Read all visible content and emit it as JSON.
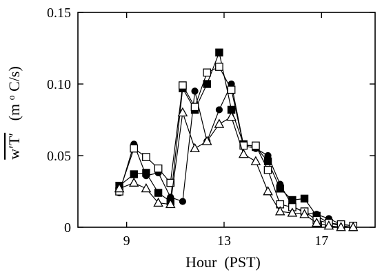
{
  "chart_data": {
    "type": "line",
    "xlabel": "Hour  (PST)",
    "ylabel": "w'T'  (m °C/s)",
    "ylabel_parts": {
      "main": "w′T′",
      "unit_pre": "(m ",
      "unit_sup": "o",
      "unit_post": "C/s)"
    },
    "xlim": [
      7,
      19.2
    ],
    "ylim": [
      0,
      0.15
    ],
    "xticks": [
      9,
      13,
      17
    ],
    "xtick_labels": [
      "9",
      "13",
      "17"
    ],
    "yticks": [
      0,
      0.05,
      0.1,
      0.15
    ],
    "ytick_labels": [
      "0",
      "0.05",
      "0.10",
      "0.15"
    ],
    "grid": false,
    "legend": "none",
    "series": [
      {
        "marker": "filled-circle",
        "x": [
          8.7,
          9.3,
          9.8,
          10.3,
          10.8,
          11.3,
          11.8,
          12.3,
          12.8,
          13.3,
          13.8,
          14.3,
          14.8,
          15.3,
          15.8,
          16.3,
          16.8,
          17.3,
          17.8,
          18.3
        ],
        "y": [
          0.024,
          0.058,
          0.036,
          0.038,
          0.021,
          0.018,
          0.095,
          0.06,
          0.082,
          0.1,
          0.057,
          0.055,
          0.05,
          0.03,
          0.015,
          0.01,
          0.009,
          0.006,
          0.002,
          0.001
        ]
      },
      {
        "marker": "filled-square",
        "x": [
          8.7,
          9.3,
          9.8,
          10.3,
          10.8,
          11.3,
          11.8,
          12.3,
          12.8,
          13.3,
          13.8,
          14.3,
          14.8,
          15.3,
          15.8,
          16.3,
          16.8,
          17.3,
          17.8,
          18.3
        ],
        "y": [
          0.029,
          0.037,
          0.038,
          0.024,
          0.018,
          0.097,
          0.082,
          0.1,
          0.122,
          0.082,
          0.058,
          0.056,
          0.046,
          0.027,
          0.019,
          0.02,
          0.008,
          0.003,
          0.001,
          0.0
        ]
      },
      {
        "marker": "open-square",
        "x": [
          8.7,
          9.3,
          9.8,
          10.3,
          10.8,
          11.3,
          11.8,
          12.3,
          12.8,
          13.3,
          13.8,
          14.3,
          14.8,
          15.3,
          15.8,
          16.3,
          16.8,
          17.3,
          17.8,
          18.3
        ],
        "y": [
          0.025,
          0.055,
          0.049,
          0.041,
          0.031,
          0.099,
          0.084,
          0.108,
          0.112,
          0.096,
          0.057,
          0.057,
          0.04,
          0.016,
          0.014,
          0.011,
          0.005,
          0.003,
          0.002,
          0.001
        ]
      },
      {
        "marker": "open-triangle",
        "x": [
          8.7,
          9.3,
          9.8,
          10.3,
          10.8,
          11.3,
          11.8,
          12.3,
          12.8,
          13.3,
          13.8,
          14.3,
          14.8,
          15.3,
          15.8,
          16.3,
          16.8,
          17.3,
          17.8,
          18.3
        ],
        "y": [
          0.027,
          0.031,
          0.027,
          0.017,
          0.016,
          0.08,
          0.055,
          0.06,
          0.072,
          0.077,
          0.051,
          0.046,
          0.025,
          0.011,
          0.01,
          0.009,
          0.003,
          0.001,
          0.0,
          0.0
        ]
      }
    ]
  }
}
